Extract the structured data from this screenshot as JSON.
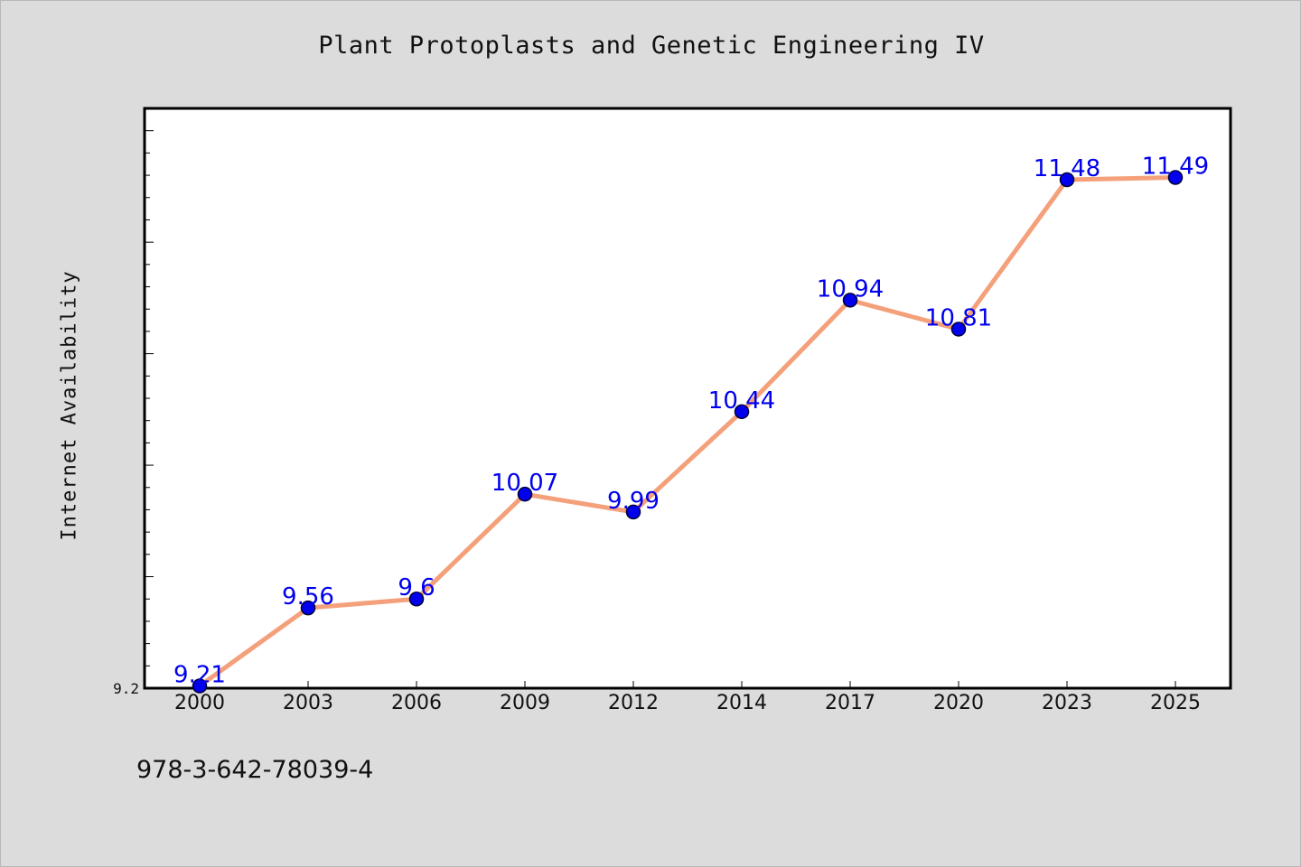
{
  "chart_data": {
    "type": "line",
    "title": "Plant Protoplasts and Genetic Engineering IV",
    "ylabel": "Internet Availability",
    "xlabel": "",
    "categories": [
      "2000",
      "2003",
      "2006",
      "2009",
      "2012",
      "2014",
      "2017",
      "2020",
      "2023",
      "2025"
    ],
    "series": [
      {
        "values": [
          9.21,
          9.56,
          9.6,
          10.07,
          9.99,
          10.44,
          10.94,
          10.81,
          11.48,
          11.49
        ]
      }
    ],
    "data_labels": [
      "9.21",
      "9.56",
      "9.6",
      "10.07",
      "9.99",
      "10.44",
      "10.94",
      "10.81",
      "11.48",
      "11.49"
    ],
    "y_tick_labels": [
      "9.2"
    ],
    "ylim": [
      9.2,
      11.8
    ],
    "grid": false,
    "colors": {
      "line": "#f4a07a",
      "marker_fill": "#0000ee",
      "marker_edge": "#000033",
      "data_label": "#0000ee",
      "background": "#dcdcdc",
      "plot_area": "#ffffff"
    }
  },
  "footer": {
    "isbn": "978-3-642-78039-4"
  }
}
